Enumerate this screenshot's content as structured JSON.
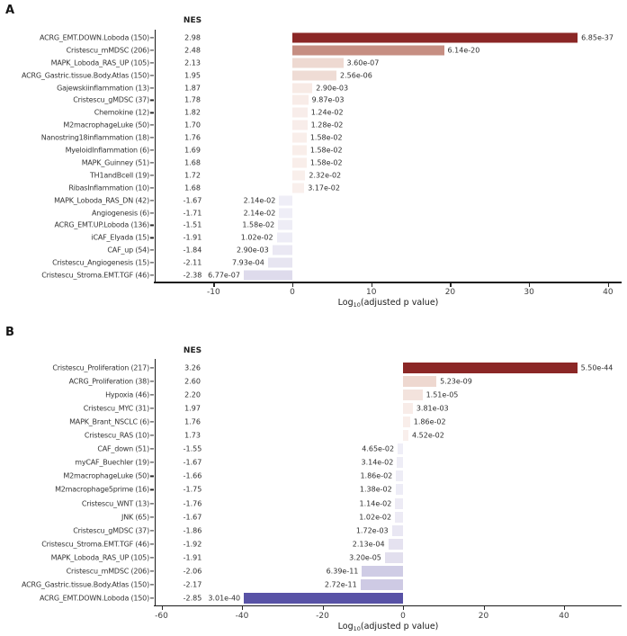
{
  "figure": {
    "background": "#ffffff",
    "axis_color": "#1a1a1a",
    "positive_accent": "#8b2726",
    "negative_accent": "#5852a6"
  },
  "chart_data": [
    {
      "type": "bar",
      "panel_label": "A",
      "orientation": "horizontal",
      "value_header": "NES",
      "xlabel_prefix": "Log",
      "xlabel_sub": "10",
      "xlabel_suffix": "(adjusted p value)",
      "bar_metric": "signed -log10(adjusted p value)",
      "xlim": [
        -17.45,
        41.73
      ],
      "grid": false,
      "x_ticks": [
        {
          "value": -10,
          "label": "-10"
        },
        {
          "value": 0,
          "label": "0"
        },
        {
          "value": 10,
          "label": "10"
        },
        {
          "value": 20,
          "label": "20"
        },
        {
          "value": 30,
          "label": "30"
        },
        {
          "value": 40,
          "label": "40"
        }
      ],
      "rows": [
        {
          "label": "ACRG_EMT.DOWN.Loboda (150)",
          "nes": "2.98",
          "p_adj": "6.85e-37",
          "signed_log10_p": 36.16,
          "color": "#8b2726"
        },
        {
          "label": "Cristescu_mMDSC (206)",
          "nes": "2.48",
          "p_adj": "6.14e-20",
          "signed_log10_p": 19.21,
          "color": "#c68e82"
        },
        {
          "label": "MAPK_Loboda_RAS_UP (105)",
          "nes": "2.13",
          "p_adj": "3.60e-07",
          "signed_log10_p": 6.44,
          "color": "#eed9d1"
        },
        {
          "label": "ACRG_Gastric.tissue.Body.Atlas (150)",
          "nes": "1.95",
          "p_adj": "2.56e-06",
          "signed_log10_p": 5.59,
          "color": "#efdcd5"
        },
        {
          "label": "Gajewskiinflammation (13)",
          "nes": "1.87",
          "p_adj": "2.90e-03",
          "signed_log10_p": 2.54,
          "color": "#f7eae5"
        },
        {
          "label": "Cristescu_gMDSC (37)",
          "nes": "1.78",
          "p_adj": "9.87e-03",
          "signed_log10_p": 2.01,
          "color": "#f8ece8"
        },
        {
          "label": "Chemokine (12)",
          "nes": "1.82",
          "p_adj": "1.24e-02",
          "signed_log10_p": 1.91,
          "color": "#f8edea"
        },
        {
          "label": "M2macrophageLuke (50)",
          "nes": "1.70",
          "p_adj": "1.28e-02",
          "signed_log10_p": 1.89,
          "color": "#f8edea"
        },
        {
          "label": "Nanostring18inflammation (18)",
          "nes": "1.76",
          "p_adj": "1.58e-02",
          "signed_log10_p": 1.8,
          "color": "#f9eeea"
        },
        {
          "label": "MyeloidInflammation (6)",
          "nes": "1.69",
          "p_adj": "1.58e-02",
          "signed_log10_p": 1.8,
          "color": "#f9eeea"
        },
        {
          "label": "MAPK_Guinney (51)",
          "nes": "1.68",
          "p_adj": "1.58e-02",
          "signed_log10_p": 1.8,
          "color": "#f9eeea"
        },
        {
          "label": "TH1andBcell (19)",
          "nes": "1.72",
          "p_adj": "2.32e-02",
          "signed_log10_p": 1.63,
          "color": "#f9efeb"
        },
        {
          "label": "RibasInflammation (10)",
          "nes": "1.68",
          "p_adj": "3.17e-02",
          "signed_log10_p": 1.5,
          "color": "#f9efec"
        },
        {
          "label": "MAPK_Loboda_RAS_DN (42)",
          "nes": "-1.67",
          "p_adj": "2.14e-02",
          "signed_log10_p": -1.67,
          "color": "#efeef7"
        },
        {
          "label": "Angiogenesis (6)",
          "nes": "-1.71",
          "p_adj": "2.14e-02",
          "signed_log10_p": -1.67,
          "color": "#efeef7"
        },
        {
          "label": "ACRG_EMT.UP.Loboda (136)",
          "nes": "-1.51",
          "p_adj": "1.58e-02",
          "signed_log10_p": -1.8,
          "color": "#eeedf6"
        },
        {
          "label": "iCAF_Elyada (15)",
          "nes": "-1.91",
          "p_adj": "1.02e-02",
          "signed_log10_p": -1.99,
          "color": "#edecf6"
        },
        {
          "label": "CAF_up (54)",
          "nes": "-1.84",
          "p_adj": "2.90e-03",
          "signed_log10_p": -2.54,
          "color": "#eae8f3"
        },
        {
          "label": "Cristescu_Angiogenesis (15)",
          "nes": "-2.11",
          "p_adj": "7.93e-04",
          "signed_log10_p": -3.1,
          "color": "#e7e5f1"
        },
        {
          "label": "Cristescu_Stroma.EMT.TGF (46)",
          "nes": "-2.38",
          "p_adj": "6.77e-07",
          "signed_log10_p": -6.17,
          "color": "#dedbec"
        }
      ]
    },
    {
      "type": "bar",
      "panel_label": "B",
      "orientation": "horizontal",
      "value_header": "NES",
      "xlabel_prefix": "Log",
      "xlabel_sub": "10",
      "xlabel_suffix": "(adjusted p value)",
      "bar_metric": "signed -log10(adjusted p value)",
      "xlim": [
        -61.68,
        54.3
      ],
      "grid": false,
      "x_ticks": [
        {
          "value": -60,
          "label": "-60"
        },
        {
          "value": -40,
          "label": "-40"
        },
        {
          "value": -20,
          "label": "-20"
        },
        {
          "value": 0,
          "label": "0"
        },
        {
          "value": 20,
          "label": "20"
        },
        {
          "value": 40,
          "label": "40"
        }
      ],
      "rows": [
        {
          "label": "Cristescu_Proliferation (217)",
          "nes": "3.26",
          "p_adj": "5.50e-44",
          "signed_log10_p": 43.26,
          "color": "#8b2726"
        },
        {
          "label": "ACRG_Proliferation (38)",
          "nes": "2.60",
          "p_adj": "5.23e-09",
          "signed_log10_p": 8.28,
          "color": "#eed8d0"
        },
        {
          "label": "Hypoxia (46)",
          "nes": "2.20",
          "p_adj": "1.51e-05",
          "signed_log10_p": 4.82,
          "color": "#f3e3dd"
        },
        {
          "label": "Cristescu_MYC (31)",
          "nes": "1.97",
          "p_adj": "3.81e-03",
          "signed_log10_p": 2.42,
          "color": "#f8ece8"
        },
        {
          "label": "MAPK_Brant_NSCLC (6)",
          "nes": "1.76",
          "p_adj": "1.86e-02",
          "signed_log10_p": 1.73,
          "color": "#f9eeea"
        },
        {
          "label": "Cristescu_RAS (10)",
          "nes": "1.73",
          "p_adj": "4.52e-02",
          "signed_log10_p": 1.34,
          "color": "#f9efec"
        },
        {
          "label": "CAF_down (51)",
          "nes": "-1.55",
          "p_adj": "4.65e-02",
          "signed_log10_p": -1.33,
          "color": "#efeef7"
        },
        {
          "label": "myCAF_Buechler (19)",
          "nes": "-1.67",
          "p_adj": "3.14e-02",
          "signed_log10_p": -1.5,
          "color": "#eeedf6"
        },
        {
          "label": "M2macrophageLuke (50)",
          "nes": "-1.66",
          "p_adj": "1.86e-02",
          "signed_log10_p": -1.73,
          "color": "#eeedf6"
        },
        {
          "label": "M2macrophage5prime (16)",
          "nes": "-1.75",
          "p_adj": "1.38e-02",
          "signed_log10_p": -1.86,
          "color": "#edecf6"
        },
        {
          "label": "Cristescu_WNT (13)",
          "nes": "-1.76",
          "p_adj": "1.14e-02",
          "signed_log10_p": -1.94,
          "color": "#edebf5"
        },
        {
          "label": "JNK (65)",
          "nes": "-1.67",
          "p_adj": "1.02e-02",
          "signed_log10_p": -1.99,
          "color": "#edebf5"
        },
        {
          "label": "Cristescu_gMDSC (37)",
          "nes": "-1.86",
          "p_adj": "1.72e-03",
          "signed_log10_p": -2.76,
          "color": "#e9e7f3"
        },
        {
          "label": "Cristescu_Stroma.EMT.TGF (46)",
          "nes": "-1.92",
          "p_adj": "2.13e-04",
          "signed_log10_p": -3.67,
          "color": "#e5e2f0"
        },
        {
          "label": "MAPK_Loboda_RAS_UP (105)",
          "nes": "-1.91",
          "p_adj": "3.20e-05",
          "signed_log10_p": -4.49,
          "color": "#e2dfee"
        },
        {
          "label": "Cristescu_mMDSC (206)",
          "nes": "-2.06",
          "p_adj": "6.39e-11",
          "signed_log10_p": -10.19,
          "color": "#cfcce5"
        },
        {
          "label": "ACRG_Gastric.tissue.Body.Atlas (150)",
          "nes": "-2.17",
          "p_adj": "2.72e-11",
          "signed_log10_p": -10.57,
          "color": "#cecae4"
        },
        {
          "label": "ACRG_EMT.DOWN.Loboda (150)",
          "nes": "-2.85",
          "p_adj": "3.01e-40",
          "signed_log10_p": -39.52,
          "color": "#5852a6"
        }
      ]
    }
  ]
}
